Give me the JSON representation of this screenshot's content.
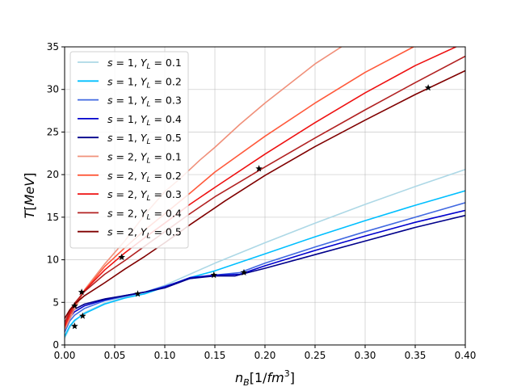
{
  "chart_data": {
    "type": "line",
    "title": "",
    "xlabel": "n_B[1/fm^3]",
    "ylabel": "T[MeV]",
    "xlim": [
      0,
      0.4
    ],
    "ylim": [
      0,
      35
    ],
    "xticks": [
      "0.00",
      "0.05",
      "0.10",
      "0.15",
      "0.20",
      "0.25",
      "0.30",
      "0.35",
      "0.40"
    ],
    "yticks": [
      "0",
      "5",
      "10",
      "15",
      "20",
      "25",
      "30",
      "35"
    ],
    "grid": true,
    "legend_position": "upper-left",
    "series": [
      {
        "name": "s = 1, Y_L = 0.1",
        "color": "#add8e6",
        "x": [
          0,
          0.005,
          0.01,
          0.02,
          0.04,
          0.06,
          0.08,
          0.1,
          0.125,
          0.15,
          0.2,
          0.25,
          0.3,
          0.35,
          0.4
        ],
        "y": [
          0.8,
          2.0,
          2.8,
          3.8,
          4.9,
          5.6,
          6.2,
          7.0,
          8.3,
          9.6,
          12.0,
          14.3,
          16.5,
          18.6,
          20.6
        ]
      },
      {
        "name": "s = 1, Y_L = 0.2",
        "color": "#00bfff",
        "x": [
          0,
          0.005,
          0.01,
          0.02,
          0.04,
          0.06,
          0.08,
          0.1,
          0.125,
          0.15,
          0.2,
          0.25,
          0.3,
          0.35,
          0.4
        ],
        "y": [
          1.0,
          2.2,
          2.9,
          3.7,
          4.8,
          5.5,
          6.0,
          6.8,
          7.9,
          8.7,
          10.7,
          12.7,
          14.6,
          16.4,
          18.1
        ]
      },
      {
        "name": "s = 1, Y_L = 0.3",
        "color": "#4169e1",
        "x": [
          0,
          0.005,
          0.01,
          0.02,
          0.04,
          0.06,
          0.08,
          0.1,
          0.125,
          0.15,
          0.175,
          0.2,
          0.25,
          0.3,
          0.35,
          0.4
        ],
        "y": [
          1.5,
          2.8,
          3.5,
          4.3,
          5.2,
          5.7,
          6.2,
          6.9,
          7.8,
          8.2,
          8.5,
          9.6,
          11.5,
          13.3,
          15.0,
          16.7
        ]
      },
      {
        "name": "s = 1, Y_L = 0.4",
        "color": "#0000cd",
        "x": [
          0,
          0.005,
          0.01,
          0.02,
          0.04,
          0.06,
          0.08,
          0.1,
          0.125,
          0.15,
          0.175,
          0.2,
          0.25,
          0.3,
          0.35,
          0.4
        ],
        "y": [
          1.9,
          3.2,
          3.9,
          4.6,
          5.3,
          5.8,
          6.2,
          6.8,
          7.9,
          8.2,
          8.3,
          9.3,
          11.1,
          12.8,
          14.4,
          15.8
        ]
      },
      {
        "name": "s = 1, Y_L = 0.5",
        "color": "#00008b",
        "x": [
          0,
          0.005,
          0.01,
          0.02,
          0.04,
          0.06,
          0.08,
          0.1,
          0.125,
          0.15,
          0.17,
          0.18,
          0.2,
          0.25,
          0.3,
          0.35,
          0.4
        ],
        "y": [
          2.2,
          3.5,
          4.2,
          4.8,
          5.4,
          5.8,
          6.2,
          6.7,
          7.8,
          8.1,
          8.1,
          8.4,
          9.0,
          10.6,
          12.2,
          13.8,
          15.2
        ]
      },
      {
        "name": "s = 2, Y_L = 0.1",
        "color": "#f0907a",
        "x": [
          0,
          0.005,
          0.01,
          0.02,
          0.04,
          0.06,
          0.08,
          0.1,
          0.115,
          0.135,
          0.15,
          0.175,
          0.2,
          0.25,
          0.3
        ],
        "y": [
          1.8,
          3.0,
          4.2,
          6.5,
          9.5,
          12.2,
          15.3,
          18.0,
          19.5,
          21.7,
          23.2,
          25.9,
          28.4,
          33.0,
          36.8
        ]
      },
      {
        "name": "s = 2, Y_L = 0.2",
        "color": "#ff5a3c",
        "x": [
          0,
          0.005,
          0.01,
          0.02,
          0.04,
          0.06,
          0.08,
          0.1,
          0.125,
          0.15,
          0.2,
          0.25,
          0.3,
          0.35,
          0.38
        ],
        "y": [
          2.0,
          3.4,
          4.6,
          6.4,
          9.2,
          11.4,
          13.5,
          15.4,
          17.8,
          20.3,
          24.5,
          28.4,
          32.0,
          35.1,
          37.0
        ]
      },
      {
        "name": "s = 2, Y_L = 0.3",
        "color": "#ee1111",
        "x": [
          0,
          0.005,
          0.01,
          0.02,
          0.04,
          0.06,
          0.08,
          0.1,
          0.125,
          0.15,
          0.2,
          0.25,
          0.3,
          0.35,
          0.4
        ],
        "y": [
          2.2,
          3.6,
          4.8,
          6.4,
          8.8,
          10.8,
          12.6,
          14.3,
          16.5,
          18.5,
          22.4,
          26.1,
          29.6,
          32.8,
          35.5
        ]
      },
      {
        "name": "s = 2, Y_L = 0.4",
        "color": "#b22222",
        "x": [
          0,
          0.005,
          0.01,
          0.02,
          0.04,
          0.06,
          0.08,
          0.1,
          0.125,
          0.15,
          0.2,
          0.25,
          0.3,
          0.35,
          0.4
        ],
        "y": [
          2.6,
          3.9,
          4.9,
          6.3,
          8.3,
          9.9,
          11.6,
          13.3,
          15.4,
          17.4,
          20.9,
          24.3,
          27.6,
          30.8,
          33.9
        ]
      },
      {
        "name": "s = 2, Y_L = 0.5",
        "color": "#800000",
        "x": [
          0,
          0.005,
          0.01,
          0.02,
          0.04,
          0.06,
          0.08,
          0.1,
          0.125,
          0.15,
          0.16,
          0.2,
          0.25,
          0.3,
          0.35,
          0.4
        ],
        "y": [
          3.1,
          4.1,
          4.8,
          5.8,
          7.3,
          8.9,
          10.4,
          12.0,
          14.1,
          16.1,
          16.9,
          19.9,
          23.3,
          26.4,
          29.4,
          32.2
        ]
      }
    ],
    "markers": {
      "shape": "star",
      "color": "#000000",
      "x": [
        0.01,
        0.018,
        0.073,
        0.149,
        0.179,
        0.01,
        0.017,
        0.057,
        0.194,
        0.363
      ],
      "y": [
        2.2,
        3.4,
        6.0,
        8.2,
        8.5,
        4.6,
        6.2,
        10.3,
        20.7,
        30.2
      ]
    }
  }
}
